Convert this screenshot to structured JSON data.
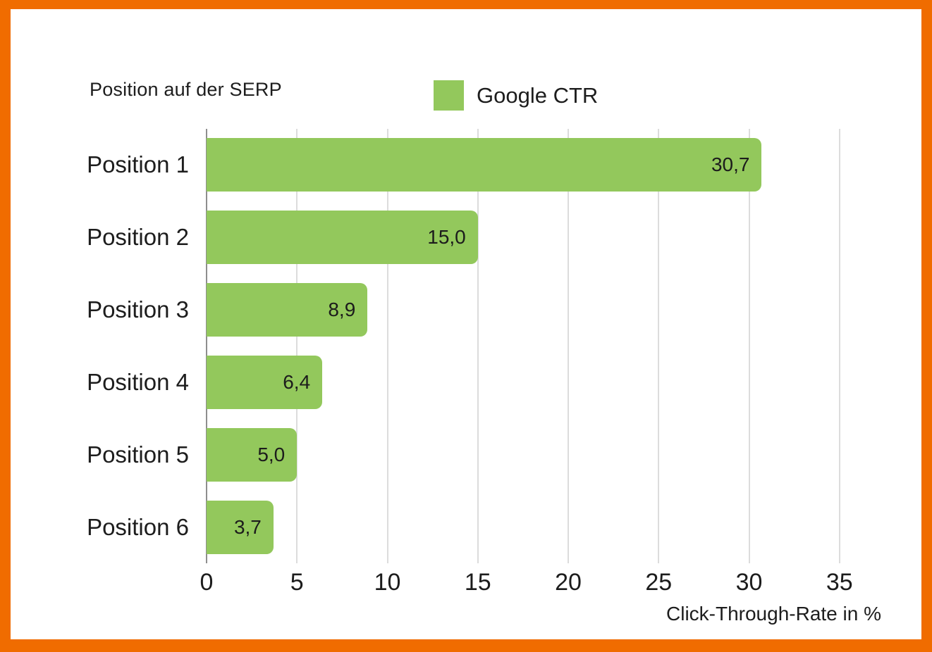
{
  "frame": {
    "border_color": "#F06C00",
    "background_color": "#FFFFFF"
  },
  "chart_data": {
    "type": "bar",
    "orientation": "horizontal",
    "title": "Position auf der SERP",
    "legend": {
      "label": "Google CTR",
      "swatch_color": "#93C85C",
      "position": "top"
    },
    "categories": [
      "Position 1",
      "Position 2",
      "Position 3",
      "Position 4",
      "Position 5",
      "Position 6"
    ],
    "values": [
      30.7,
      15.0,
      8.9,
      6.4,
      5.0,
      3.7
    ],
    "value_labels": [
      "30,7",
      "15,0",
      "8,9",
      "6,4",
      "5,0",
      "3,7"
    ],
    "xlabel": "Click-Through-Rate in %",
    "ylabel": "",
    "xlim": [
      0,
      37
    ],
    "xticks": [
      0,
      5,
      10,
      15,
      20,
      25,
      30,
      35
    ],
    "xtick_labels": [
      "0",
      "5",
      "10",
      "15",
      "20",
      "25",
      "30",
      "35"
    ],
    "grid": "vertical-only",
    "bar_color": "#93C85C",
    "gridline_color": "#DCDCDC",
    "zero_axis_color": "#8E8E8E",
    "text_color": "#1D1D1D"
  }
}
